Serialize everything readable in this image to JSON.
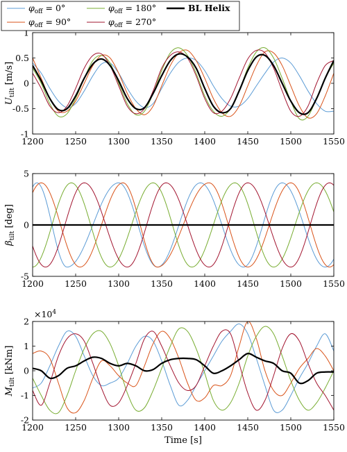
{
  "chart_data": [
    {
      "type": "line",
      "ylabel": "U_tilt [m/s]",
      "xlim": [
        1200,
        1550
      ],
      "ylim": [
        -1,
        1
      ],
      "xticks": [
        1200,
        1250,
        1300,
        1350,
        1400,
        1450,
        1500,
        1550
      ],
      "yticks": [
        -1,
        -0.5,
        0,
        0.5,
        1
      ],
      "x": [
        1200,
        1210,
        1220,
        1230,
        1240,
        1250,
        1260,
        1270,
        1280,
        1290,
        1300,
        1310,
        1320,
        1330,
        1340,
        1350,
        1360,
        1370,
        1380,
        1390,
        1400,
        1410,
        1420,
        1430,
        1440,
        1450,
        1460,
        1470,
        1480,
        1490,
        1500,
        1510,
        1520,
        1530,
        1540,
        1550
      ],
      "series": [
        {
          "name": "φ_off = 0°",
          "color": "#5b9bd5",
          "values": [
            0.4,
            0.2,
            -0.1,
            -0.35,
            -0.48,
            -0.4,
            -0.15,
            0.15,
            0.38,
            0.4,
            0.2,
            -0.1,
            -0.35,
            -0.48,
            -0.4,
            -0.1,
            0.2,
            0.42,
            0.5,
            0.45,
            0.25,
            -0.05,
            -0.3,
            -0.45,
            -0.45,
            -0.3,
            -0.05,
            0.2,
            0.42,
            0.5,
            0.4,
            0.15,
            -0.15,
            -0.4,
            -0.55,
            -0.55
          ]
        },
        {
          "name": "φ_off = 90°",
          "color": "#d95319",
          "values": [
            0.5,
            0.1,
            -0.3,
            -0.55,
            -0.55,
            -0.35,
            0.0,
            0.35,
            0.55,
            0.5,
            0.2,
            -0.2,
            -0.5,
            -0.62,
            -0.45,
            -0.05,
            0.35,
            0.6,
            0.65,
            0.45,
            0.1,
            -0.3,
            -0.58,
            -0.65,
            -0.45,
            -0.05,
            0.35,
            0.62,
            0.6,
            0.35,
            -0.05,
            -0.45,
            -0.68,
            -0.6,
            -0.25,
            0.2
          ]
        },
        {
          "name": "φ_off = 180°",
          "color": "#77ac30",
          "values": [
            0.3,
            0.0,
            -0.4,
            -0.65,
            -0.6,
            -0.3,
            0.1,
            0.45,
            0.55,
            0.4,
            0.0,
            -0.4,
            -0.62,
            -0.55,
            -0.2,
            0.25,
            0.6,
            0.7,
            0.55,
            0.2,
            -0.25,
            -0.55,
            -0.65,
            -0.5,
            -0.15,
            0.3,
            0.62,
            0.7,
            0.5,
            0.1,
            -0.35,
            -0.7,
            -0.65,
            -0.3,
            0.1,
            0.4
          ]
        },
        {
          "name": "φ_off = 270°",
          "color": "#a2142f",
          "values": [
            0.2,
            -0.1,
            -0.45,
            -0.58,
            -0.45,
            -0.1,
            0.3,
            0.55,
            0.58,
            0.35,
            -0.05,
            -0.45,
            -0.6,
            -0.5,
            -0.15,
            0.3,
            0.55,
            0.62,
            0.5,
            0.15,
            -0.3,
            -0.58,
            -0.55,
            -0.3,
            0.1,
            0.48,
            0.65,
            0.6,
            0.3,
            -0.15,
            -0.55,
            -0.65,
            -0.45,
            0.0,
            0.35,
            0.45
          ]
        },
        {
          "name": "BL Helix",
          "color": "#000000",
          "values": [
            0.35,
            0.05,
            -0.3,
            -0.52,
            -0.5,
            -0.25,
            0.1,
            0.38,
            0.48,
            0.35,
            0.05,
            -0.3,
            -0.5,
            -0.48,
            -0.2,
            0.15,
            0.45,
            0.58,
            0.52,
            0.3,
            -0.1,
            -0.45,
            -0.58,
            -0.5,
            -0.15,
            0.25,
            0.52,
            0.55,
            0.35,
            0.0,
            -0.35,
            -0.58,
            -0.58,
            -0.3,
            0.1,
            0.45
          ]
        }
      ]
    },
    {
      "type": "line",
      "ylabel": "β_tilt [deg]",
      "xlim": [
        1200,
        1550
      ],
      "ylim": [
        -5,
        5
      ],
      "xticks": [
        1200,
        1250,
        1300,
        1350,
        1400,
        1450,
        1500,
        1550
      ],
      "yticks": [
        -5,
        0,
        5
      ],
      "series": [
        {
          "name": "φ_off = 0°",
          "color": "#5b9bd5",
          "shape": "sinusoid",
          "amplitude": 4.1,
          "peaks_at": [
            1205,
            1300,
            1395,
            1490
          ],
          "troughs_at": [
            1240,
            1345,
            1445,
            1540
          ]
        },
        {
          "name": "φ_off = 90°",
          "color": "#d95319",
          "shape": "sinusoid",
          "amplitude": 4.1,
          "peaks_at": [
            1210,
            1305,
            1405,
            1500
          ],
          "troughs_at": [
            1255,
            1345,
            1450,
            1545
          ]
        },
        {
          "name": "φ_off = 180°",
          "color": "#77ac30",
          "shape": "sinusoid",
          "amplitude": 4.1,
          "peaks_at": [
            1245,
            1340,
            1435,
            1530
          ],
          "troughs_at": [
            1200,
            1290,
            1385,
            1480
          ]
        },
        {
          "name": "φ_off = 270°",
          "color": "#a2142f",
          "shape": "sinusoid",
          "amplitude": 4.1,
          "peaks_at": [
            1260,
            1355,
            1450,
            1545
          ],
          "troughs_at": [
            1215,
            1310,
            1405,
            1500
          ]
        },
        {
          "name": "BL Helix",
          "color": "#000000",
          "values_constant": 0
        }
      ]
    },
    {
      "type": "line",
      "ylabel": "M_tilt [kNm]",
      "multiplier": "×10^4",
      "xlabel": "Time [s]",
      "xlim": [
        1200,
        1550
      ],
      "ylim": [
        -2,
        2
      ],
      "xticks": [
        1200,
        1250,
        1300,
        1350,
        1400,
        1450,
        1500,
        1550
      ],
      "yticks": [
        -2,
        -1,
        0,
        1,
        2
      ],
      "x": [
        1200,
        1210,
        1220,
        1230,
        1240,
        1250,
        1260,
        1270,
        1280,
        1290,
        1300,
        1310,
        1320,
        1330,
        1340,
        1350,
        1360,
        1370,
        1380,
        1390,
        1400,
        1410,
        1420,
        1430,
        1440,
        1450,
        1460,
        1470,
        1480,
        1490,
        1500,
        1510,
        1520,
        1530,
        1540,
        1550
      ],
      "series": [
        {
          "name": "φ_off = 0°",
          "color": "#5b9bd5",
          "values": [
            -0.7,
            -0.5,
            0.2,
            1.0,
            1.6,
            1.4,
            0.6,
            -0.2,
            -0.6,
            -0.5,
            -0.3,
            0.3,
            1.0,
            1.4,
            1.2,
            0.4,
            -0.6,
            -1.4,
            -1.2,
            -0.6,
            0.0,
            0.6,
            1.2,
            1.6,
            1.9,
            1.5,
            0.5,
            -0.6,
            -1.6,
            -1.6,
            -1.0,
            -0.3,
            0.3,
            1.0,
            1.5,
            0.8
          ]
        },
        {
          "name": "φ_off = 90°",
          "color": "#d95319",
          "values": [
            0.7,
            0.8,
            0.5,
            -0.5,
            -1.5,
            -1.7,
            -1.2,
            -0.3,
            0.4,
            0.2,
            -0.2,
            -0.5,
            -0.6,
            0.2,
            1.1,
            1.6,
            1.3,
            0.5,
            -0.5,
            -1.2,
            -1.1,
            -0.6,
            -0.6,
            -0.2,
            1.0,
            2.0,
            1.3,
            0.0,
            -0.8,
            -1.0,
            -0.5,
            0.1,
            0.5,
            0.9,
            0.6,
            0.0
          ]
        },
        {
          "name": "φ_off = 180°",
          "color": "#77ac30",
          "values": [
            -0.3,
            -1.0,
            -1.6,
            -1.7,
            -1.0,
            0.0,
            0.9,
            1.5,
            1.6,
            1.1,
            0.2,
            -0.9,
            -1.6,
            -1.5,
            -0.8,
            0.1,
            1.0,
            1.7,
            1.6,
            0.9,
            -0.1,
            -1.2,
            -1.6,
            -1.3,
            -0.5,
            0.6,
            1.4,
            1.8,
            1.5,
            0.6,
            -0.4,
            -1.2,
            -1.6,
            -1.3,
            -0.7,
            0.0
          ]
        },
        {
          "name": "φ_off = 270°",
          "color": "#a2142f",
          "values": [
            -0.8,
            -1.4,
            -0.5,
            0.6,
            1.3,
            1.5,
            1.2,
            0.3,
            -0.7,
            -1.4,
            -1.3,
            -0.6,
            0.3,
            1.3,
            1.6,
            1.0,
            0.2,
            -0.5,
            -0.8,
            -0.6,
            0.2,
            1.0,
            1.6,
            1.5,
            0.3,
            -0.9,
            -1.6,
            -1.2,
            -0.2,
            0.9,
            1.5,
            1.2,
            0.3,
            -0.5,
            -1.0,
            -1.6
          ]
        },
        {
          "name": "BL Helix",
          "color": "#000000",
          "values": [
            0.1,
            0.0,
            -0.3,
            -0.2,
            0.1,
            0.2,
            0.4,
            0.55,
            0.5,
            0.3,
            0.2,
            0.3,
            0.2,
            0.0,
            0.05,
            0.3,
            0.45,
            0.5,
            0.5,
            0.45,
            0.2,
            -0.1,
            0.0,
            0.2,
            0.45,
            0.7,
            0.55,
            0.4,
            0.3,
            0.0,
            -0.1,
            -0.5,
            -0.4,
            -0.1,
            -0.05,
            -0.05
          ]
        }
      ]
    }
  ],
  "legend": {
    "placement": "top-left",
    "entries": [
      {
        "symbol": "φ",
        "sub": "off",
        "rest": " = 0°",
        "color": "#5b9bd5"
      },
      {
        "symbol": "φ",
        "sub": "off",
        "rest": " = 180°",
        "color": "#77ac30"
      },
      {
        "symbol": "",
        "sub": "",
        "rest": "BL Helix",
        "color": "#000000"
      },
      {
        "symbol": "φ",
        "sub": "off",
        "rest": " = 90°",
        "color": "#d95319"
      },
      {
        "symbol": "φ",
        "sub": "off",
        "rest": " = 270°",
        "color": "#a2142f"
      }
    ]
  }
}
